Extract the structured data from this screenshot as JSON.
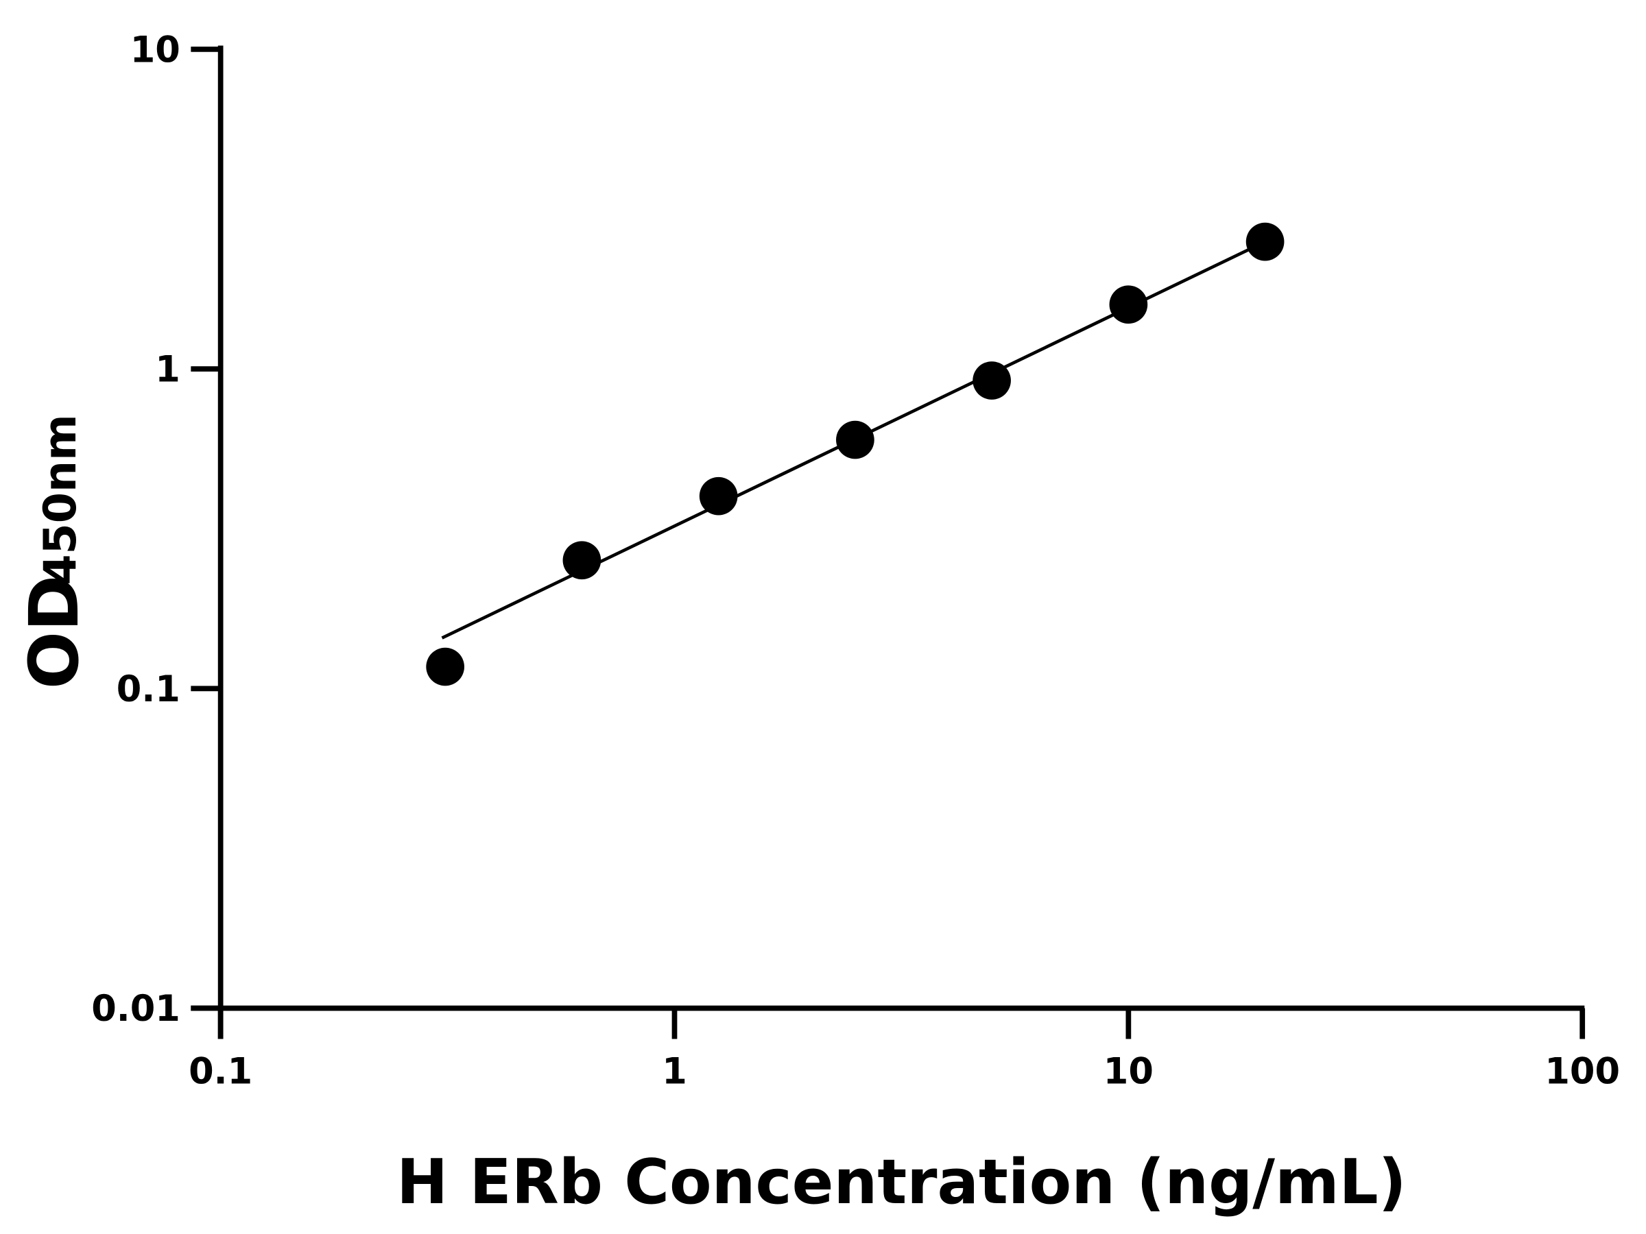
{
  "chart_data": {
    "type": "scatter",
    "xlabel": "H ERb Concentration (ng/mL)",
    "ylabel": "OD",
    "ylabel_subscript": "450nm",
    "x_scale": "log",
    "y_scale": "log",
    "xlim": [
      0.1,
      100
    ],
    "ylim": [
      0.01,
      10
    ],
    "x_ticks": [
      "0.1",
      "1",
      "10",
      "100"
    ],
    "y_ticks": [
      "0.01",
      "0.1",
      "1",
      "10"
    ],
    "grid": false,
    "legend": "none",
    "marker_color": "#000000",
    "series": [
      {
        "x": [
          0.3125,
          0.625,
          1.25,
          2.5,
          5,
          10,
          20
        ],
        "y": [
          0.117,
          0.252,
          0.4,
          0.6,
          0.92,
          1.59,
          2.5
        ]
      }
    ],
    "fit_line": {
      "x": [
        0.3125,
        20
      ],
      "y": [
        0.144,
        2.5
      ]
    }
  }
}
